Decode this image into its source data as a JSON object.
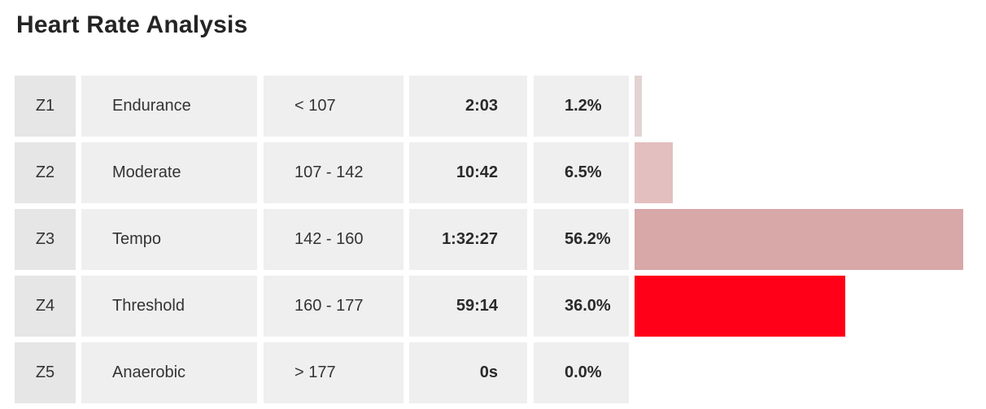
{
  "title": "Heart Rate Analysis",
  "zones": [
    {
      "zone": "Z1",
      "name": "Endurance",
      "range": "< 107",
      "time": "2:03",
      "percent": "1.2%",
      "share": 0.012,
      "color": "#e3d3d3"
    },
    {
      "zone": "Z2",
      "name": "Moderate",
      "range": "107 - 142",
      "time": "10:42",
      "percent": "6.5%",
      "share": 0.065,
      "color": "#e3bfbf"
    },
    {
      "zone": "Z3",
      "name": "Tempo",
      "range": "142 - 160",
      "time": "1:32:27",
      "percent": "56.2%",
      "share": 0.562,
      "color": "#d8a7a7"
    },
    {
      "zone": "Z4",
      "name": "Threshold",
      "range": "160 - 177",
      "time": "59:14",
      "percent": "36.0%",
      "share": 0.36,
      "color": "#ff0018"
    },
    {
      "zone": "Z5",
      "name": "Anaerobic",
      "range": "> 177",
      "time": "0s",
      "percent": "0.0%",
      "share": 0.0,
      "color": "#e3d3d3"
    }
  ]
}
